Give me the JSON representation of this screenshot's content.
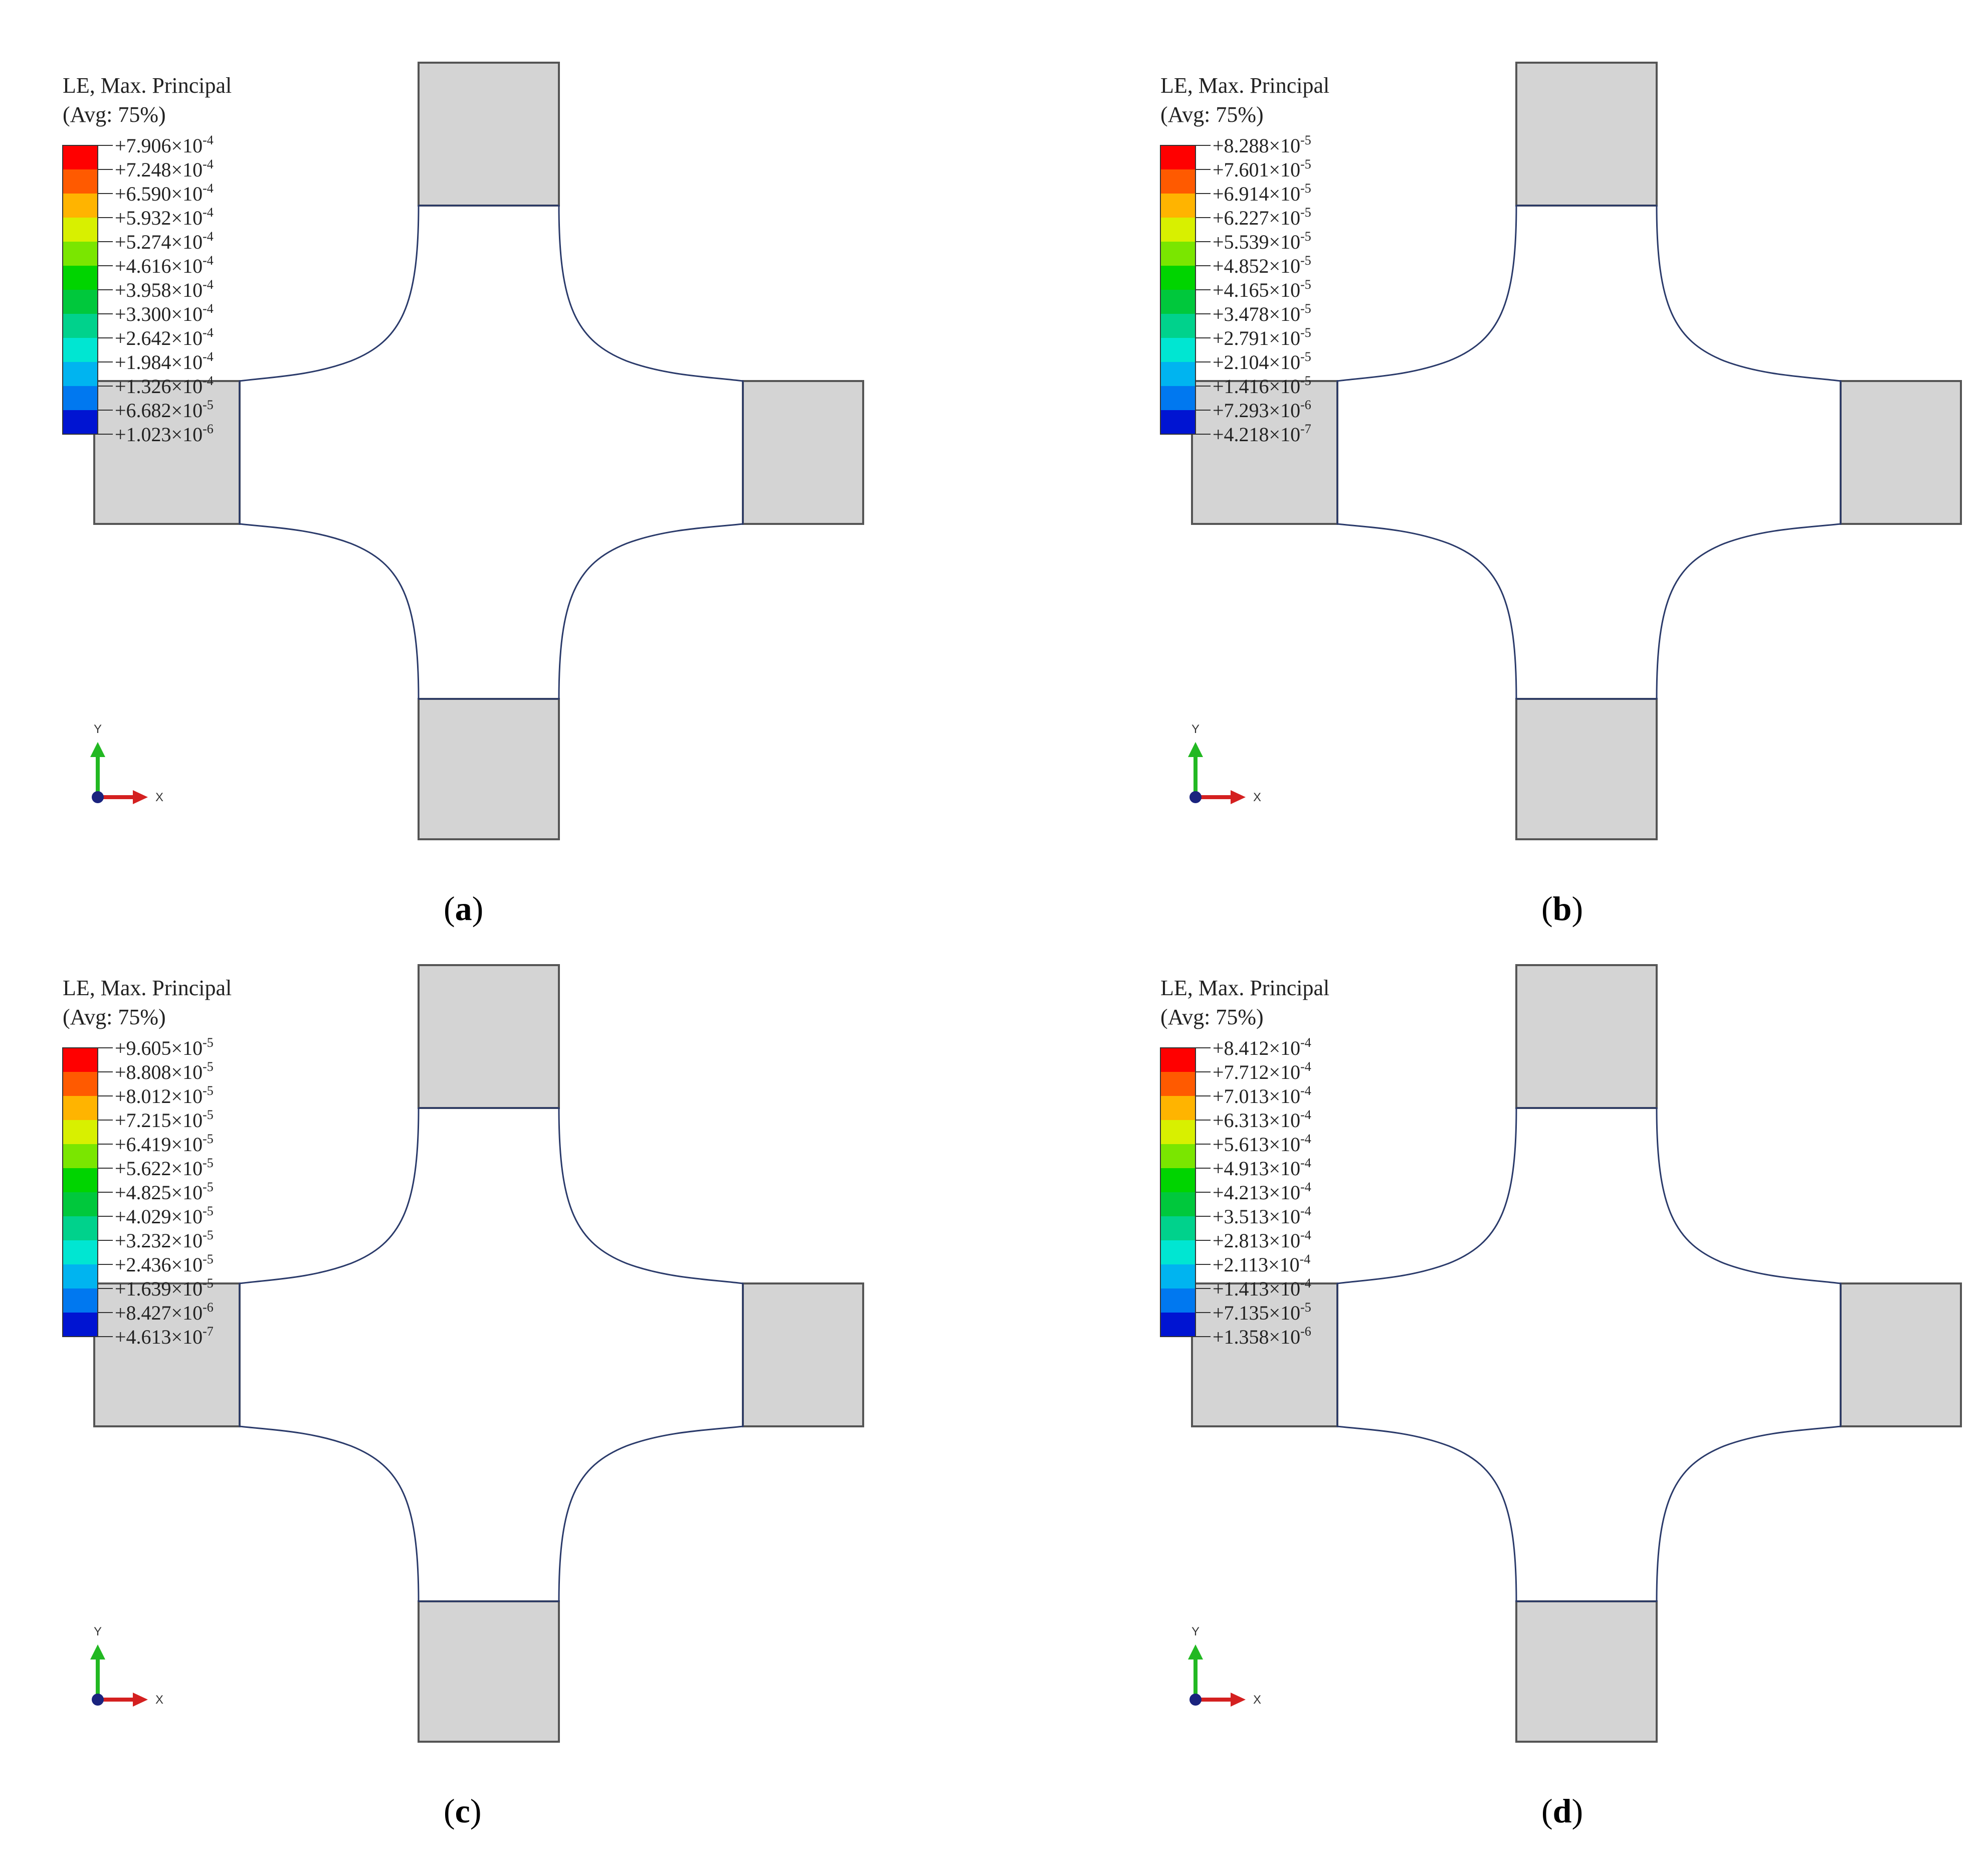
{
  "legend_title_line1": "LE, Max. Principal",
  "legend_title_line2": "(Avg: 75%)",
  "colors": {
    "legend": [
      "#ff0000",
      "#ff5a00",
      "#ffb400",
      "#d8f000",
      "#7ae600",
      "#00d400",
      "#00c83c",
      "#00d28c",
      "#00e6d2",
      "#00b4f0",
      "#0078f0",
      "#0046dc",
      "#0014d2"
    ],
    "background": "#0028d2",
    "mid_blue": "#1e64e8",
    "cyan": "#20c8d0",
    "green": "#2cd250",
    "grip": "#d4d4d4"
  },
  "axis": {
    "y": "Y",
    "x": "X"
  },
  "panels": [
    {
      "label": "a",
      "legend": [
        {
          "m": "+7.906",
          "e": "-4"
        },
        {
          "m": "+7.248",
          "e": "-4"
        },
        {
          "m": "+6.590",
          "e": "-4"
        },
        {
          "m": "+5.932",
          "e": "-4"
        },
        {
          "m": "+5.274",
          "e": "-4"
        },
        {
          "m": "+4.616",
          "e": "-4"
        },
        {
          "m": "+3.958",
          "e": "-4"
        },
        {
          "m": "+3.300",
          "e": "-4"
        },
        {
          "m": "+2.642",
          "e": "-4"
        },
        {
          "m": "+1.984",
          "e": "-4"
        },
        {
          "m": "+1.326",
          "e": "-4"
        },
        {
          "m": "+6.682",
          "e": "-5"
        },
        {
          "m": "+1.023",
          "e": "-6"
        }
      ]
    },
    {
      "label": "b",
      "legend": [
        {
          "m": "+8.288",
          "e": "-5"
        },
        {
          "m": "+7.601",
          "e": "-5"
        },
        {
          "m": "+6.914",
          "e": "-5"
        },
        {
          "m": "+6.227",
          "e": "-5"
        },
        {
          "m": "+5.539",
          "e": "-5"
        },
        {
          "m": "+4.852",
          "e": "-5"
        },
        {
          "m": "+4.165",
          "e": "-5"
        },
        {
          "m": "+3.478",
          "e": "-5"
        },
        {
          "m": "+2.791",
          "e": "-5"
        },
        {
          "m": "+2.104",
          "e": "-5"
        },
        {
          "m": "+1.416",
          "e": "-5"
        },
        {
          "m": "+7.293",
          "e": "-6"
        },
        {
          "m": "+4.218",
          "e": "-7"
        }
      ]
    },
    {
      "label": "c",
      "legend": [
        {
          "m": "+9.605",
          "e": "-5"
        },
        {
          "m": "+8.808",
          "e": "-5"
        },
        {
          "m": "+8.012",
          "e": "-5"
        },
        {
          "m": "+7.215",
          "e": "-5"
        },
        {
          "m": "+6.419",
          "e": "-5"
        },
        {
          "m": "+5.622",
          "e": "-5"
        },
        {
          "m": "+4.825",
          "e": "-5"
        },
        {
          "m": "+4.029",
          "e": "-5"
        },
        {
          "m": "+3.232",
          "e": "-5"
        },
        {
          "m": "+2.436",
          "e": "-5"
        },
        {
          "m": "+1.639",
          "e": "-5"
        },
        {
          "m": "+8.427",
          "e": "-6"
        },
        {
          "m": "+4.613",
          "e": "-7"
        }
      ]
    },
    {
      "label": "d",
      "legend": [
        {
          "m": "+8.412",
          "e": "-4"
        },
        {
          "m": "+7.712",
          "e": "-4"
        },
        {
          "m": "+7.013",
          "e": "-4"
        },
        {
          "m": "+6.313",
          "e": "-4"
        },
        {
          "m": "+5.613",
          "e": "-4"
        },
        {
          "m": "+4.913",
          "e": "-4"
        },
        {
          "m": "+4.213",
          "e": "-4"
        },
        {
          "m": "+3.513",
          "e": "-4"
        },
        {
          "m": "+2.813",
          "e": "-4"
        },
        {
          "m": "+2.113",
          "e": "-4"
        },
        {
          "m": "+1.413",
          "e": "-4"
        },
        {
          "m": "+7.135",
          "e": "-5"
        },
        {
          "m": "+1.358",
          "e": "-6"
        }
      ]
    }
  ]
}
